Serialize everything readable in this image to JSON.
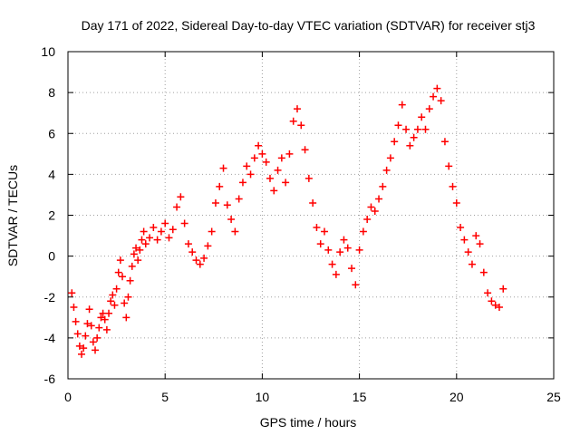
{
  "chart_data": {
    "type": "scatter",
    "title": "Day 171 of 2022, Sidereal Day-to-day VTEC variation (SDTVAR) for receiver stj3",
    "xlabel": "GPS time / hours",
    "ylabel": "SDTVAR / TECUs",
    "xlim": [
      0,
      25
    ],
    "ylim": [
      -6,
      10
    ],
    "xticks": [
      0,
      5,
      10,
      15,
      20,
      25
    ],
    "yticks": [
      -6,
      -4,
      -2,
      0,
      2,
      4,
      6,
      8,
      10
    ],
    "grid": true,
    "marker": "+",
    "series": [
      {
        "name": "stj3",
        "color": "#ff0000",
        "x": [
          0.2,
          0.3,
          0.4,
          0.5,
          0.6,
          0.7,
          0.8,
          0.9,
          1.0,
          1.1,
          1.2,
          1.3,
          1.4,
          1.5,
          1.6,
          1.7,
          1.8,
          1.9,
          2.0,
          2.1,
          2.2,
          2.3,
          2.4,
          2.5,
          2.6,
          2.7,
          2.8,
          2.9,
          3.0,
          3.1,
          3.2,
          3.3,
          3.4,
          3.5,
          3.6,
          3.7,
          3.8,
          3.9,
          4.0,
          4.2,
          4.4,
          4.6,
          4.8,
          5.0,
          5.2,
          5.4,
          5.6,
          5.8,
          6.0,
          6.2,
          6.4,
          6.6,
          6.8,
          7.0,
          7.2,
          7.4,
          7.6,
          7.8,
          8.0,
          8.2,
          8.4,
          8.6,
          8.8,
          9.0,
          9.2,
          9.4,
          9.6,
          9.8,
          10.0,
          10.2,
          10.4,
          10.6,
          10.8,
          11.0,
          11.2,
          11.4,
          11.6,
          11.8,
          12.0,
          12.2,
          12.4,
          12.6,
          12.8,
          13.0,
          13.2,
          13.4,
          13.6,
          13.8,
          14.0,
          14.2,
          14.4,
          14.6,
          14.8,
          15.0,
          15.2,
          15.4,
          15.6,
          15.8,
          16.0,
          16.2,
          16.4,
          16.6,
          16.8,
          17.0,
          17.2,
          17.4,
          17.6,
          17.8,
          18.0,
          18.2,
          18.4,
          18.6,
          18.8,
          19.0,
          19.2,
          19.4,
          19.6,
          19.8,
          20.0,
          20.2,
          20.4,
          20.6,
          20.8,
          21.0,
          21.2,
          21.4,
          21.6,
          21.8,
          22.0,
          22.2,
          22.4
        ],
        "y": [
          -1.8,
          -2.5,
          -3.2,
          -3.8,
          -4.4,
          -4.8,
          -4.5,
          -3.9,
          -3.3,
          -2.6,
          -3.4,
          -4.2,
          -4.6,
          -4.0,
          -3.5,
          -3.0,
          -2.8,
          -3.1,
          -3.6,
          -2.8,
          -2.2,
          -1.9,
          -2.4,
          -1.6,
          -0.8,
          -0.2,
          -1.0,
          -2.3,
          -3.0,
          -2.0,
          -1.2,
          -0.5,
          0.1,
          0.4,
          -0.2,
          0.3,
          0.8,
          1.2,
          0.6,
          0.9,
          1.4,
          0.8,
          1.2,
          1.6,
          0.9,
          1.3,
          2.4,
          2.9,
          1.6,
          0.6,
          0.2,
          -0.2,
          -0.4,
          -0.1,
          0.5,
          1.2,
          2.6,
          3.4,
          4.3,
          2.5,
          1.8,
          1.2,
          2.8,
          3.6,
          4.4,
          4.0,
          4.8,
          5.4,
          5.0,
          4.6,
          3.8,
          3.2,
          4.2,
          4.8,
          3.6,
          5.0,
          6.6,
          7.2,
          6.4,
          5.2,
          3.8,
          2.6,
          1.4,
          0.6,
          1.2,
          0.3,
          -0.4,
          -0.9,
          0.2,
          0.8,
          0.4,
          -0.6,
          -1.4,
          0.3,
          1.2,
          1.8,
          2.4,
          2.2,
          2.8,
          3.4,
          4.2,
          4.8,
          5.6,
          6.4,
          7.4,
          6.2,
          5.4,
          5.8,
          6.2,
          6.8,
          6.2,
          7.2,
          7.8,
          8.2,
          7.6,
          5.6,
          4.4,
          3.4,
          2.6,
          1.4,
          0.8,
          0.2,
          -0.4,
          1.0,
          0.6,
          -0.8,
          -1.8,
          -2.2,
          -2.4,
          -2.5,
          -1.6
        ]
      }
    ]
  }
}
